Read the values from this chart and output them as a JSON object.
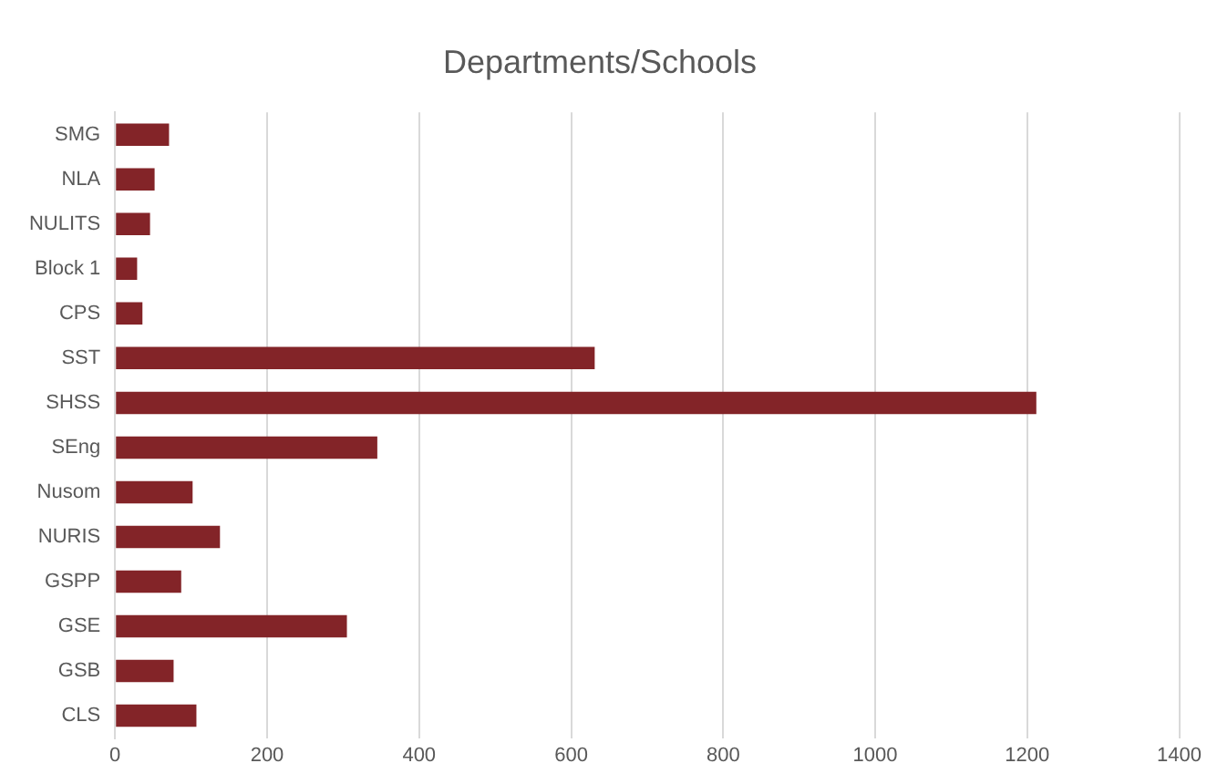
{
  "chart_data": {
    "type": "bar",
    "orientation": "horizontal",
    "title": "Departments/Schools",
    "categories": [
      "SMG",
      "NLA",
      "NULITS",
      "Block 1",
      "CPS",
      "SST",
      "SHSS",
      "SEng",
      "Nusom",
      "NURIS",
      "GSPP",
      "GSE",
      "GSB",
      "CLS"
    ],
    "values": [
      71,
      52,
      46,
      29,
      36,
      631,
      1212,
      345,
      102,
      138,
      87,
      305,
      77,
      107
    ],
    "color": "#832428",
    "xlim": [
      0,
      1400
    ],
    "xticks": [
      0,
      200,
      400,
      600,
      800,
      1000,
      1200,
      1400
    ],
    "grid": "x",
    "legend": false
  }
}
